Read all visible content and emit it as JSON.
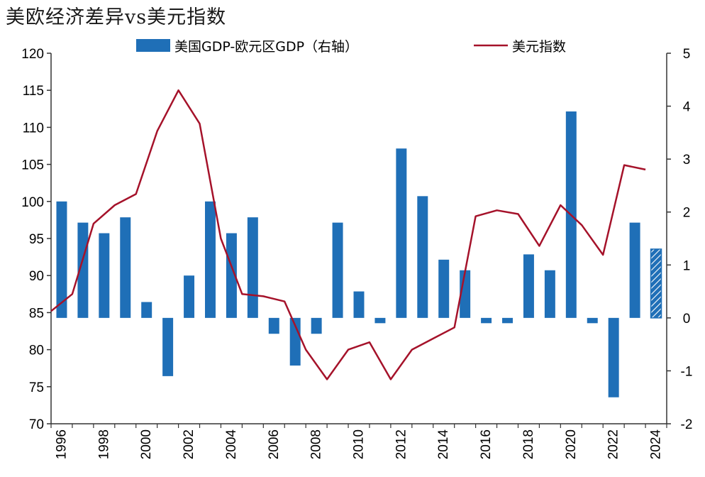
{
  "page_title": "美欧经济差异vs美元指数",
  "colors": {
    "bar": "#1f6fb7",
    "line": "#a5122a",
    "axis": "#333333",
    "text": "#000000"
  },
  "chart_data": {
    "type": "bar+line",
    "title": "美欧经济差异vs美元指数",
    "legend": {
      "placement": "top",
      "items": [
        {
          "label": "美国GDP-欧元区GDP（右轴）",
          "kind": "bar"
        },
        {
          "label": "美元指数",
          "kind": "line"
        }
      ]
    },
    "x": {
      "categories": [
        1996,
        1997,
        1998,
        1999,
        2000,
        2001,
        2002,
        2003,
        2004,
        2005,
        2006,
        2007,
        2008,
        2009,
        2010,
        2011,
        2012,
        2013,
        2014,
        2015,
        2016,
        2017,
        2018,
        2019,
        2020,
        2021,
        2022,
        2023,
        2024
      ],
      "tick_labels": [
        "1996",
        "1998",
        "2000",
        "2002",
        "2004",
        "2006",
        "2008",
        "2010",
        "2012",
        "2014",
        "2016",
        "2018",
        "2020",
        "2022",
        "2024"
      ]
    },
    "y_left": {
      "min": 70,
      "max": 120,
      "ticks": [
        70,
        75,
        80,
        85,
        90,
        95,
        100,
        105,
        110,
        115,
        120
      ]
    },
    "y_right": {
      "min": -2,
      "max": 5,
      "ticks": [
        -2,
        -1,
        0,
        1,
        2,
        3,
        4,
        5
      ]
    },
    "series": [
      {
        "name": "美国GDP-欧元区GDP（右轴）",
        "kind": "bar",
        "axis": "right",
        "values": [
          2.2,
          1.8,
          1.6,
          1.9,
          0.3,
          -1.1,
          0.8,
          2.2,
          1.6,
          1.9,
          -0.3,
          -0.9,
          -0.3,
          1.8,
          0.5,
          -0.1,
          3.2,
          2.3,
          1.1,
          0.9,
          -0.1,
          -0.1,
          1.2,
          0.9,
          3.9,
          -0.1,
          -1.5,
          1.8,
          1.3
        ],
        "hatched_last": true
      },
      {
        "name": "美元指数",
        "kind": "line",
        "axis": "left",
        "x": [
          1995.5,
          1996.5,
          1997.5,
          1998.5,
          1999.5,
          2000.5,
          2001.5,
          2002.5,
          2003.5,
          2004.5,
          2005.5,
          2006.5,
          2007.5,
          2008.5,
          2009.5,
          2010.5,
          2011.5,
          2012.5,
          2013.5,
          2014.5,
          2015.5,
          2016.5,
          2017.5,
          2018.5,
          2019.5,
          2020.5,
          2021.5,
          2022.5,
          2023.5
        ],
        "values": [
          85.2,
          87.5,
          97.0,
          99.5,
          101.0,
          109.5,
          115.0,
          110.5,
          95.0,
          87.5,
          87.2,
          86.5,
          80.0,
          76.0,
          80.0,
          81.0,
          76.0,
          80.0,
          81.5,
          83.0,
          98.0,
          98.8,
          98.3,
          94.0,
          99.5,
          96.8,
          92.8,
          104.9,
          104.3
        ]
      }
    ]
  }
}
